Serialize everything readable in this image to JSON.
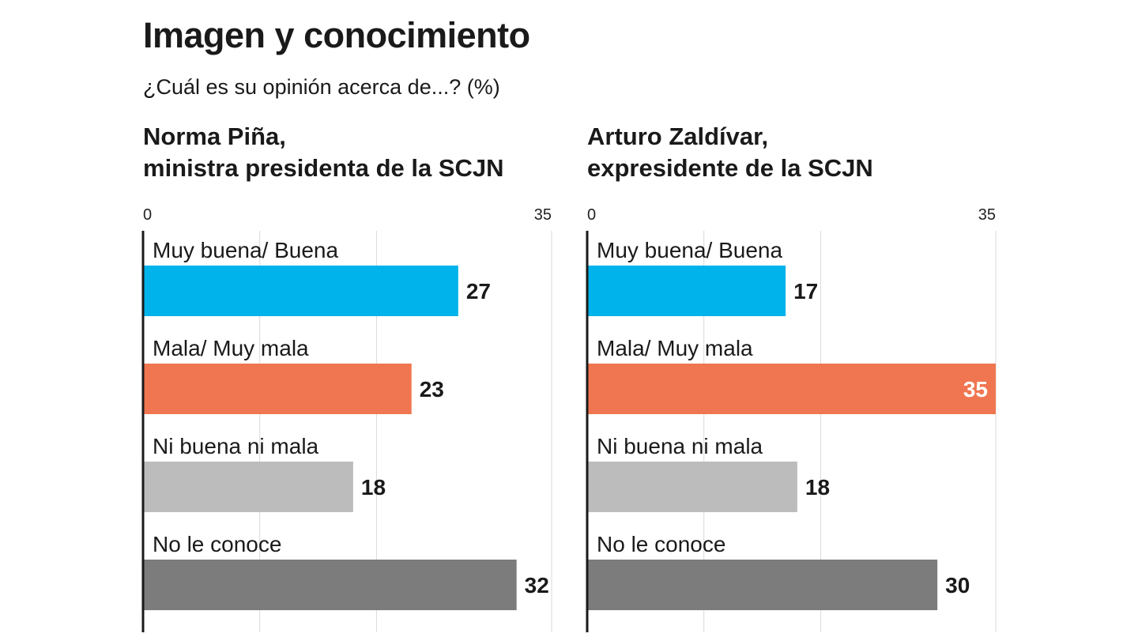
{
  "title": "Imagen y conocimiento",
  "subtitle": "¿Cuál es su opinión acerca de...? (%)",
  "chart_data": [
    {
      "type": "bar",
      "orientation": "horizontal",
      "title_lines": [
        "Norma Piña,",
        "ministra presidenta de la SCJN"
      ],
      "xlim": [
        0,
        35
      ],
      "x_ticks": [
        "0",
        "35"
      ],
      "grid": true,
      "categories": [
        "Muy buena/ Buena",
        "Mala/ Muy mala",
        "Ni buena ni mala",
        "No le conoce"
      ],
      "values": [
        27,
        23,
        18,
        32
      ],
      "colors": [
        "#00b3ea",
        "#ef7650",
        "#bdbcbc",
        "#7d7c7c"
      ]
    },
    {
      "type": "bar",
      "orientation": "horizontal",
      "title_lines": [
        "Arturo Zaldívar,",
        "expresidente de la SCJN"
      ],
      "xlim": [
        0,
        35
      ],
      "x_ticks": [
        "0",
        "35"
      ],
      "grid": true,
      "categories": [
        "Muy buena/ Buena",
        "Mala/ Muy mala",
        "Ni buena ni mala",
        "No le conoce"
      ],
      "values": [
        17,
        35,
        18,
        30
      ],
      "colors": [
        "#00b3ea",
        "#ef7650",
        "#bdbcbc",
        "#7d7c7c"
      ]
    }
  ]
}
